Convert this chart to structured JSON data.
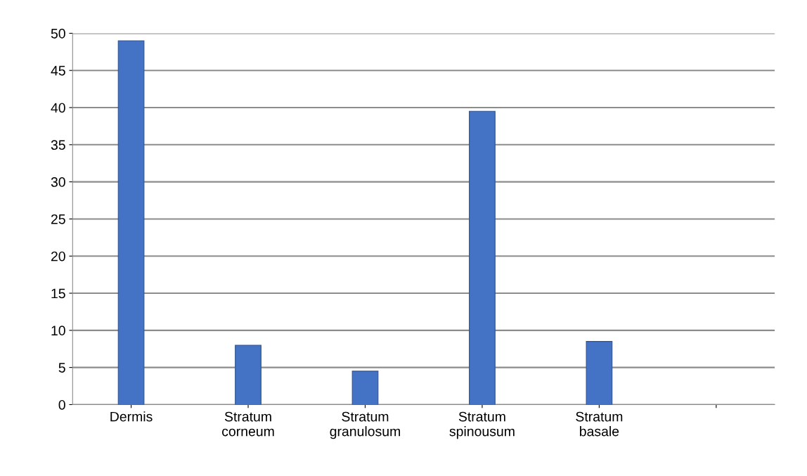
{
  "chart_data": {
    "type": "bar",
    "categories": [
      "Dermis",
      "Stratum\ncorneum",
      "Stratum\ngranulosum",
      "Stratum\nspinousum",
      "Stratum\nbasale",
      null
    ],
    "values": [
      49,
      8,
      4.5,
      39.5,
      8.5,
      null
    ],
    "color": "#4472c4",
    "ylim": [
      0,
      50
    ],
    "yticks": [
      0,
      5,
      10,
      15,
      20,
      25,
      30,
      35,
      40,
      45,
      50
    ],
    "grid": "y",
    "legend": false
  }
}
